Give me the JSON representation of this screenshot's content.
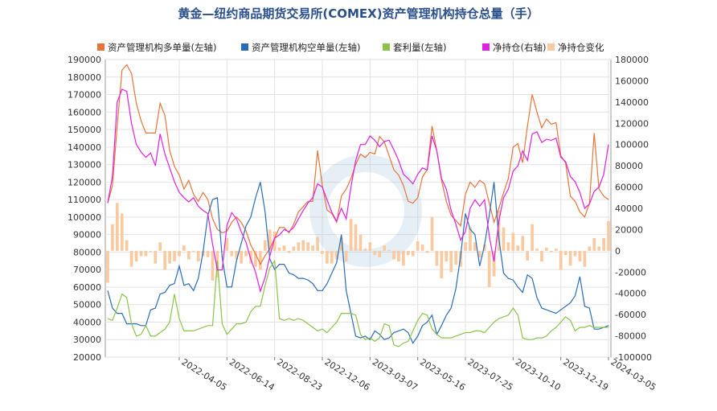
{
  "chart_data": {
    "type": "line",
    "title": "黄金—纽约商品期货交易所(COMEX)资产管理机构持仓总量（手）",
    "legend_position": "top",
    "grid": true,
    "left_axis": {
      "min": 20000,
      "max": 190000,
      "step": 10000
    },
    "right_axis": {
      "min": -100000,
      "max": 180000,
      "step": 20000
    },
    "x_ticks": [
      "2022-04-05",
      "2022-06-14",
      "2022-08-23",
      "2022-12-06",
      "2023-03-07",
      "2023-05-16",
      "2023-07-25",
      "2023-10-10",
      "2023-12-19",
      "2024-03-05"
    ],
    "x_tick_index": [
      15,
      25,
      35,
      45,
      55,
      65,
      75,
      85,
      95,
      105
    ],
    "n_points": 106,
    "series": [
      {
        "name": "资产管理机构多单量(左轴)",
        "color": "#e8743b",
        "axis": "left",
        "values": [
          108000,
          118000,
          152000,
          184000,
          187000,
          182000,
          165000,
          155000,
          148000,
          148000,
          148000,
          165000,
          158000,
          138000,
          129000,
          124000,
          116000,
          121000,
          113000,
          109000,
          114000,
          110000,
          99000,
          93000,
          91000,
          92000,
          97000,
          100000,
          97000,
          92000,
          84000,
          79000,
          73000,
          78000,
          82000,
          88000,
          94000,
          94000,
          91000,
          96000,
          103000,
          106000,
          109000,
          109000,
          138000,
          118000,
          104000,
          102000,
          97000,
          112000,
          116000,
          122000,
          130000,
          136000,
          134000,
          137000,
          136000,
          146000,
          143000,
          135000,
          127000,
          124000,
          118000,
          109000,
          108000,
          111000,
          123000,
          127000,
          152000,
          138000,
          121000,
          109000,
          101000,
          98000,
          95000,
          113000,
          120000,
          117000,
          121000,
          119000,
          108000,
          97000,
          105000,
          114000,
          122000,
          140000,
          142000,
          131000,
          152000,
          170000,
          160000,
          151000,
          156000,
          153000,
          154000,
          135000,
          131000,
          112000,
          109000,
          103000,
          100000,
          108000,
          148000,
          116000,
          112000,
          110000
        ]
      },
      {
        "name": "资产管理机构空单量(左轴)",
        "color": "#2b6cb8",
        "axis": "left",
        "values": [
          58000,
          48000,
          45000,
          45000,
          39000,
          39000,
          39000,
          38000,
          38000,
          47000,
          48000,
          56000,
          57000,
          61000,
          62000,
          72000,
          61000,
          62000,
          58000,
          65000,
          80000,
          101000,
          110000,
          111000,
          77000,
          60000,
          60000,
          75000,
          85000,
          95000,
          100000,
          111000,
          120000,
          103000,
          76000,
          70000,
          73000,
          73000,
          68000,
          67000,
          65000,
          65000,
          64000,
          62000,
          58000,
          58000,
          62000,
          68000,
          74000,
          90000,
          58000,
          45000,
          32000,
          31000,
          32000,
          30000,
          35000,
          33000,
          30000,
          31000,
          34000,
          35000,
          36000,
          34000,
          28000,
          32000,
          38000,
          40000,
          44000,
          33000,
          38000,
          44000,
          48000,
          59000,
          78000,
          102000,
          93000,
          90000,
          72000,
          84000,
          101000,
          120000,
          88000,
          68000,
          65000,
          64000,
          60000,
          57000,
          67000,
          65000,
          54000,
          48000,
          47000,
          46000,
          45000,
          47000,
          49000,
          51000,
          55000,
          66000,
          49000,
          48000,
          36000,
          36000,
          37000,
          38000
        ]
      },
      {
        "name": "套利量(左轴)",
        "color": "#8bc34a",
        "axis": "left",
        "values": [
          42000,
          41000,
          48000,
          56000,
          54000,
          39000,
          32000,
          33000,
          38000,
          32000,
          32000,
          34000,
          36000,
          40000,
          56000,
          42000,
          35000,
          35000,
          35000,
          36000,
          37000,
          38000,
          38000,
          75000,
          39000,
          33000,
          36000,
          39000,
          39000,
          40000,
          46000,
          49000,
          49000,
          61000,
          71000,
          75000,
          42000,
          41000,
          42000,
          41000,
          42000,
          41000,
          39000,
          37000,
          35000,
          36000,
          34000,
          37000,
          40000,
          45000,
          45000,
          45000,
          44000,
          33000,
          30000,
          31000,
          29000,
          31000,
          39000,
          38000,
          27000,
          26000,
          28000,
          29000,
          35000,
          41000,
          45000,
          44000,
          36000,
          33000,
          31000,
          31000,
          31000,
          32000,
          33000,
          34000,
          34000,
          35000,
          35000,
          34000,
          37000,
          40000,
          42000,
          43000,
          44000,
          48000,
          44000,
          31000,
          30000,
          30000,
          31000,
          31000,
          32000,
          35000,
          37000,
          40000,
          43000,
          41000,
          35000,
          37000,
          37000,
          38000,
          37000,
          37000,
          37000,
          37000
        ]
      },
      {
        "name": "净持仓(右轴)",
        "color": "#e020e0",
        "axis": "right",
        "values": [
          45000,
          70000,
          140000,
          152000,
          150000,
          120000,
          100000,
          93000,
          88000,
          92000,
          80000,
          110000,
          91000,
          78000,
          65000,
          55000,
          50000,
          46000,
          50000,
          42000,
          38000,
          35000,
          6000,
          -18000,
          -18000,
          24000,
          36000,
          30000,
          18000,
          8000,
          -8000,
          -20000,
          -38000,
          -25000,
          -5000,
          12000,
          15000,
          20000,
          18000,
          22000,
          30000,
          38000,
          45000,
          50000,
          63000,
          60000,
          48000,
          36000,
          28000,
          40000,
          30000,
          60000,
          85000,
          100000,
          100000,
          108000,
          104000,
          98000,
          103000,
          104000,
          95000,
          85000,
          72000,
          68000,
          63000,
          72000,
          78000,
          76000,
          108000,
          94000,
          68000,
          58000,
          38000,
          25000,
          10000,
          18000,
          40000,
          48000,
          42000,
          48000,
          14000,
          -10000,
          28000,
          50000,
          58000,
          75000,
          80000,
          94000,
          85000,
          110000,
          112000,
          102000,
          105000,
          104000,
          106000,
          88000,
          84000,
          70000,
          65000,
          55000,
          40000,
          44000,
          56000,
          60000,
          72000,
          100000
        ]
      },
      {
        "name": "净持仓变化",
        "color": "#f9c9a0",
        "axis": "right",
        "kind": "bar",
        "values": [
          -30000,
          25000,
          45000,
          35000,
          10000,
          -15000,
          -10000,
          -5000,
          -5000,
          0,
          -12000,
          8000,
          -18000,
          -12000,
          -10000,
          -5000,
          5000,
          -8000,
          0,
          -10000,
          -5000,
          -6000,
          -28000,
          -25000,
          0,
          12000,
          -5000,
          -8000,
          -12000,
          -5000,
          -12000,
          -15000,
          -18000,
          10000,
          20000,
          18000,
          3000,
          5000,
          -2000,
          4000,
          8000,
          10000,
          8000,
          5000,
          13000,
          -3000,
          -12000,
          -12000,
          -8000,
          12000,
          -10000,
          30000,
          25000,
          15000,
          2000,
          8000,
          -4000,
          -6000,
          5000,
          1000,
          -8000,
          -10000,
          -14000,
          -4000,
          -5000,
          9000,
          6000,
          -2000,
          32000,
          -14000,
          -26000,
          -10000,
          -20000,
          -13000,
          -15000,
          8000,
          22000,
          8000,
          -6000,
          6000,
          -34000,
          -24000,
          38000,
          22000,
          8000,
          17000,
          5000,
          14000,
          -9000,
          25000,
          2000,
          -10000,
          3000,
          -1000,
          2000,
          -18000,
          -4000,
          -14000,
          -5000,
          -10000,
          -15000,
          4000,
          12000,
          4000,
          12000,
          28000
        ]
      }
    ]
  }
}
